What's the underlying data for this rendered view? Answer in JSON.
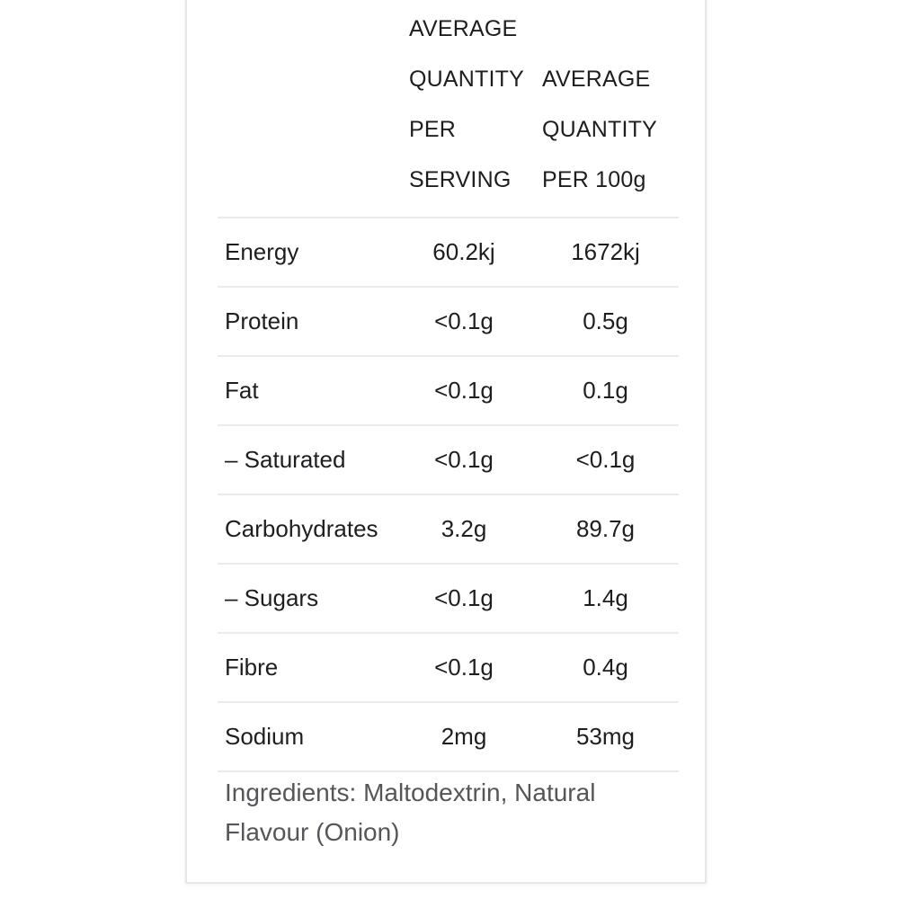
{
  "card": {
    "header": {
      "serving_lines": [
        "AVERAGE",
        "QUANTITY",
        "PER",
        "SERVING"
      ],
      "per100g_lines": [
        "AVERAGE",
        "QUANTITY",
        "PER 100g"
      ]
    },
    "rows": [
      {
        "label": "Energy",
        "per_serving": "60.2kj",
        "per_100g": "1672kj"
      },
      {
        "label": "Protein",
        "per_serving": "<0.1g",
        "per_100g": "0.5g"
      },
      {
        "label": "Fat",
        "per_serving": "<0.1g",
        "per_100g": "0.1g"
      },
      {
        "label": "– Saturated",
        "per_serving": "<0.1g",
        "per_100g": "<0.1g"
      },
      {
        "label": "Carbohydrates",
        "per_serving": "3.2g",
        "per_100g": "89.7g"
      },
      {
        "label": "– Sugars",
        "per_serving": "<0.1g",
        "per_100g": "1.4g"
      },
      {
        "label": "Fibre",
        "per_serving": "<0.1g",
        "per_100g": "0.4g"
      },
      {
        "label": "Sodium",
        "per_serving": "2mg",
        "per_100g": "53mg"
      }
    ],
    "ingredients_text": "Ingredients: Maltodextrin, Natural Flavour (Onion)"
  },
  "colors": {
    "background": "#ffffff",
    "card_border": "#e6e6e9",
    "divider": "#ebebeb",
    "text_primary": "#1e1e21",
    "text_secondary": "#55565a"
  }
}
